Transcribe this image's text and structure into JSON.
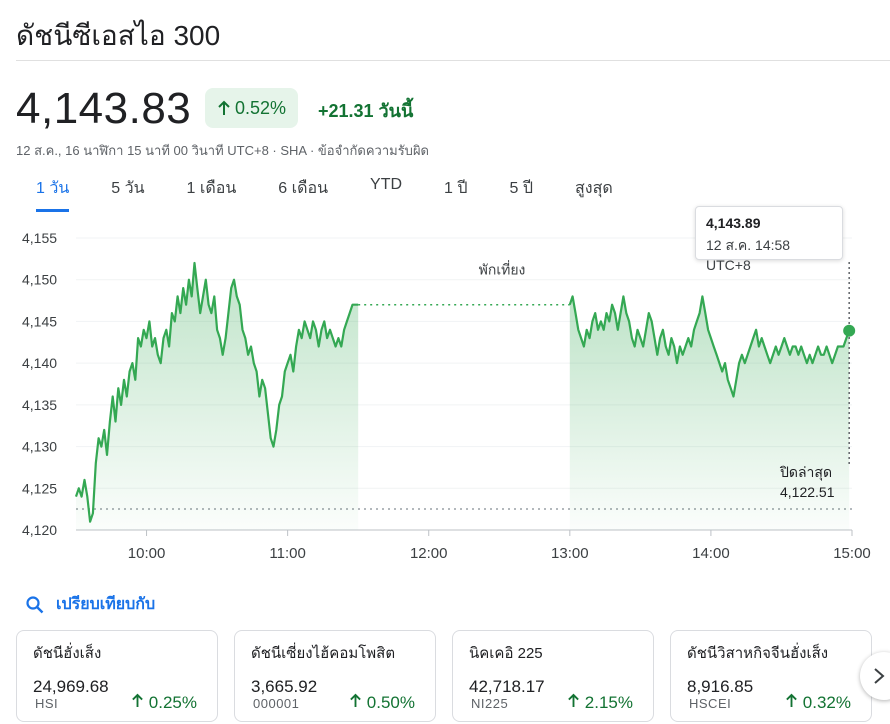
{
  "header": {
    "title": "ดัชนีซีเอสไอ 300"
  },
  "quote": {
    "price": "4,143.83",
    "pct_change": "0.52%",
    "abs_change": "+21.31 วันนี้",
    "meta": "12 ส.ค., 16 นาฬิกา 15 นาที 00 วินาที UTC+8 · SHA · ข้อจำกัดความรับผิด"
  },
  "tabs": [
    {
      "label": "1 วัน",
      "active": true
    },
    {
      "label": "5 วัน"
    },
    {
      "label": "1 เดือน"
    },
    {
      "label": "6 เดือน"
    },
    {
      "label": "YTD"
    },
    {
      "label": "1 ปี"
    },
    {
      "label": "5 ปี"
    },
    {
      "label": "สูงสุด"
    }
  ],
  "tooltip": {
    "value": "4,143.89",
    "time": "12 ส.ค. 14:58 UTC+8"
  },
  "chart_data": {
    "type": "line",
    "ylim": [
      4120,
      4155
    ],
    "yticks": [
      "4,155",
      "4,150",
      "4,145",
      "4,140",
      "4,135",
      "4,130",
      "4,125",
      "4,120"
    ],
    "ytick_values": [
      4155,
      4150,
      4145,
      4140,
      4135,
      4130,
      4125,
      4120
    ],
    "xticks": [
      "10:00",
      "11:00",
      "12:00",
      "13:00",
      "14:00",
      "15:00"
    ],
    "xtick_hours": [
      10,
      11,
      12,
      13,
      14,
      15
    ],
    "xlim_hours": [
      9.5,
      15.0
    ],
    "lunch_label": "พักเที่ยง",
    "prev_close_label": "ปิดล่าสุด",
    "prev_close_value_text": "4,122.51",
    "prev_close": 4122.51,
    "line_color": "#34a853",
    "morning": [
      [
        9.5,
        4124
      ],
      [
        9.52,
        4125
      ],
      [
        9.54,
        4124
      ],
      [
        9.56,
        4126
      ],
      [
        9.58,
        4124
      ],
      [
        9.6,
        4121
      ],
      [
        9.62,
        4122
      ],
      [
        9.64,
        4128
      ],
      [
        9.66,
        4131
      ],
      [
        9.68,
        4130
      ],
      [
        9.7,
        4132
      ],
      [
        9.72,
        4129
      ],
      [
        9.74,
        4133
      ],
      [
        9.76,
        4136
      ],
      [
        9.78,
        4133
      ],
      [
        9.8,
        4137
      ],
      [
        9.82,
        4135
      ],
      [
        9.84,
        4138
      ],
      [
        9.86,
        4136
      ],
      [
        9.88,
        4139
      ],
      [
        9.9,
        4140
      ],
      [
        9.92,
        4138
      ],
      [
        9.94,
        4143
      ],
      [
        9.96,
        4142
      ],
      [
        9.98,
        4144
      ],
      [
        10.0,
        4143
      ],
      [
        10.02,
        4145
      ],
      [
        10.04,
        4142
      ],
      [
        10.06,
        4143
      ],
      [
        10.08,
        4141
      ],
      [
        10.1,
        4140
      ],
      [
        10.12,
        4143
      ],
      [
        10.14,
        4144
      ],
      [
        10.16,
        4142
      ],
      [
        10.18,
        4146
      ],
      [
        10.2,
        4145
      ],
      [
        10.22,
        4148
      ],
      [
        10.24,
        4146
      ],
      [
        10.26,
        4149
      ],
      [
        10.28,
        4147
      ],
      [
        10.3,
        4150
      ],
      [
        10.32,
        4148
      ],
      [
        10.34,
        4152
      ],
      [
        10.36,
        4149
      ],
      [
        10.38,
        4146
      ],
      [
        10.4,
        4148
      ],
      [
        10.42,
        4150
      ],
      [
        10.44,
        4147
      ],
      [
        10.46,
        4146
      ],
      [
        10.48,
        4148
      ],
      [
        10.5,
        4144
      ],
      [
        10.52,
        4143
      ],
      [
        10.54,
        4141
      ],
      [
        10.56,
        4143
      ],
      [
        10.58,
        4146
      ],
      [
        10.6,
        4149
      ],
      [
        10.62,
        4150
      ],
      [
        10.64,
        4148
      ],
      [
        10.66,
        4147
      ],
      [
        10.68,
        4144
      ],
      [
        10.7,
        4143
      ],
      [
        10.72,
        4141
      ],
      [
        10.74,
        4142
      ],
      [
        10.76,
        4140
      ],
      [
        10.78,
        4139
      ],
      [
        10.8,
        4136
      ],
      [
        10.82,
        4138
      ],
      [
        10.84,
        4137
      ],
      [
        10.86,
        4134
      ],
      [
        10.88,
        4131
      ],
      [
        10.9,
        4130
      ],
      [
        10.92,
        4132
      ],
      [
        10.94,
        4135
      ],
      [
        10.96,
        4136
      ],
      [
        10.98,
        4139
      ],
      [
        11.0,
        4140
      ],
      [
        11.02,
        4141
      ],
      [
        11.04,
        4139
      ],
      [
        11.06,
        4142
      ],
      [
        11.08,
        4144
      ],
      [
        11.1,
        4143
      ],
      [
        11.12,
        4145
      ],
      [
        11.14,
        4144
      ],
      [
        11.16,
        4143
      ],
      [
        11.18,
        4145
      ],
      [
        11.2,
        4144
      ],
      [
        11.22,
        4142
      ],
      [
        11.24,
        4144
      ],
      [
        11.26,
        4145
      ],
      [
        11.28,
        4143
      ],
      [
        11.3,
        4144
      ],
      [
        11.32,
        4143
      ],
      [
        11.34,
        4142
      ],
      [
        11.36,
        4143
      ],
      [
        11.38,
        4142
      ],
      [
        11.4,
        4144
      ],
      [
        11.42,
        4145
      ],
      [
        11.44,
        4146
      ],
      [
        11.46,
        4147
      ],
      [
        11.48,
        4147
      ],
      [
        11.5,
        4147
      ]
    ],
    "afternoon": [
      [
        13.0,
        4147
      ],
      [
        13.02,
        4148
      ],
      [
        13.04,
        4146
      ],
      [
        13.06,
        4144
      ],
      [
        13.08,
        4143
      ],
      [
        13.1,
        4142
      ],
      [
        13.12,
        4144
      ],
      [
        13.14,
        4143
      ],
      [
        13.16,
        4145
      ],
      [
        13.18,
        4146
      ],
      [
        13.2,
        4144
      ],
      [
        13.22,
        4145
      ],
      [
        13.24,
        4144
      ],
      [
        13.26,
        4146
      ],
      [
        13.28,
        4145
      ],
      [
        13.3,
        4147
      ],
      [
        13.32,
        4146
      ],
      [
        13.34,
        4144
      ],
      [
        13.36,
        4146
      ],
      [
        13.38,
        4148
      ],
      [
        13.4,
        4146
      ],
      [
        13.42,
        4145
      ],
      [
        13.44,
        4143
      ],
      [
        13.46,
        4142
      ],
      [
        13.48,
        4144
      ],
      [
        13.5,
        4143
      ],
      [
        13.52,
        4142
      ],
      [
        13.54,
        4144
      ],
      [
        13.56,
        4146
      ],
      [
        13.58,
        4145
      ],
      [
        13.6,
        4143
      ],
      [
        13.62,
        4141
      ],
      [
        13.64,
        4143
      ],
      [
        13.66,
        4144
      ],
      [
        13.68,
        4142
      ],
      [
        13.7,
        4141
      ],
      [
        13.72,
        4143
      ],
      [
        13.74,
        4142
      ],
      [
        13.76,
        4140
      ],
      [
        13.78,
        4142
      ],
      [
        13.8,
        4141
      ],
      [
        13.82,
        4142
      ],
      [
        13.84,
        4143
      ],
      [
        13.86,
        4142
      ],
      [
        13.88,
        4144
      ],
      [
        13.9,
        4145
      ],
      [
        13.92,
        4146
      ],
      [
        13.94,
        4148
      ],
      [
        13.96,
        4146
      ],
      [
        13.98,
        4144
      ],
      [
        14.0,
        4143
      ],
      [
        14.02,
        4142
      ],
      [
        14.04,
        4141
      ],
      [
        14.06,
        4140
      ],
      [
        14.08,
        4139
      ],
      [
        14.1,
        4140
      ],
      [
        14.12,
        4138
      ],
      [
        14.14,
        4137
      ],
      [
        14.16,
        4136
      ],
      [
        14.18,
        4138
      ],
      [
        14.2,
        4140
      ],
      [
        14.22,
        4141
      ],
      [
        14.24,
        4140
      ],
      [
        14.26,
        4141
      ],
      [
        14.28,
        4142
      ],
      [
        14.3,
        4143
      ],
      [
        14.32,
        4144
      ],
      [
        14.34,
        4142
      ],
      [
        14.36,
        4143
      ],
      [
        14.38,
        4142
      ],
      [
        14.4,
        4141
      ],
      [
        14.42,
        4140
      ],
      [
        14.44,
        4141
      ],
      [
        14.46,
        4142
      ],
      [
        14.48,
        4141
      ],
      [
        14.5,
        4142
      ],
      [
        14.52,
        4143
      ],
      [
        14.54,
        4142
      ],
      [
        14.56,
        4141
      ],
      [
        14.58,
        4142
      ],
      [
        14.6,
        4142
      ],
      [
        14.62,
        4141
      ],
      [
        14.64,
        4142
      ],
      [
        14.66,
        4141
      ],
      [
        14.68,
        4140
      ],
      [
        14.7,
        4141
      ],
      [
        14.72,
        4140
      ],
      [
        14.74,
        4141
      ],
      [
        14.76,
        4142
      ],
      [
        14.78,
        4141
      ],
      [
        14.8,
        4141
      ],
      [
        14.82,
        4142
      ],
      [
        14.84,
        4141
      ],
      [
        14.86,
        4140
      ],
      [
        14.88,
        4141
      ],
      [
        14.9,
        4142
      ],
      [
        14.92,
        4142
      ],
      [
        14.94,
        4142
      ],
      [
        14.96,
        4143
      ],
      [
        14.98,
        4143.89
      ]
    ],
    "current_point": [
      14.98,
      4143.89
    ]
  },
  "compare": {
    "label": "เปรียบเทียบกับ"
  },
  "cards": [
    {
      "name": "ดัชนีฮั่งเส็ง",
      "value": "24,969.68",
      "ticker": "HSI",
      "pct": "0.25%"
    },
    {
      "name": "ดัชนีเซี่ยงไฮ้คอมโพสิต",
      "value": "3,665.92",
      "ticker": "000001",
      "pct": "0.50%"
    },
    {
      "name": "นิคเคอิ 225",
      "value": "42,718.17",
      "ticker": "NI225",
      "pct": "2.15%"
    },
    {
      "name": "ดัชนีวิสาหกิจจีนฮั่งเส็ง",
      "value": "8,916.85",
      "ticker": "HSCEI",
      "pct": "0.32%"
    }
  ],
  "icons": {
    "up": "arrow-up-icon",
    "search": "search-icon",
    "next": "chevron-right-icon"
  }
}
